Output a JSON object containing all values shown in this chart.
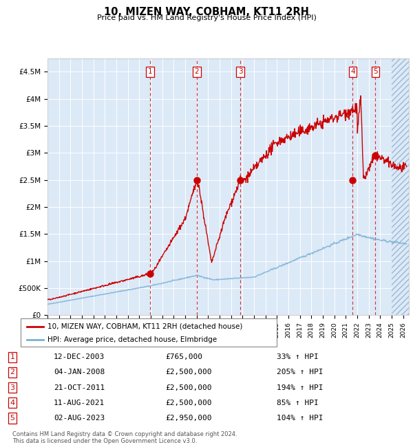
{
  "title": "10, MIZEN WAY, COBHAM, KT11 2RH",
  "subtitle": "Price paid vs. HM Land Registry's House Price Index (HPI)",
  "ylim": [
    0,
    4750000
  ],
  "xlim_start": 1995,
  "xlim_end": 2026.5,
  "plot_bg_color": "#dce9f7",
  "sale_points": [
    {
      "date": 2003.95,
      "price": 765000,
      "label": "1"
    },
    {
      "date": 2008.02,
      "price": 2500000,
      "label": "2"
    },
    {
      "date": 2011.81,
      "price": 2500000,
      "label": "3"
    },
    {
      "date": 2021.61,
      "price": 2500000,
      "label": "4"
    },
    {
      "date": 2023.59,
      "price": 2950000,
      "label": "5"
    }
  ],
  "vline_dates": [
    2003.95,
    2008.02,
    2011.81,
    2021.61,
    2023.59
  ],
  "legend_entries": [
    {
      "label": "10, MIZEN WAY, COBHAM, KT11 2RH (detached house)",
      "color": "#cc0000"
    },
    {
      "label": "HPI: Average price, detached house, Elmbridge",
      "color": "#7ab0d4"
    }
  ],
  "table_rows": [
    {
      "num": "1",
      "date": "12-DEC-2003",
      "price": "£765,000",
      "pct": "33% ↑ HPI"
    },
    {
      "num": "2",
      "date": "04-JAN-2008",
      "price": "£2,500,000",
      "pct": "205% ↑ HPI"
    },
    {
      "num": "3",
      "date": "21-OCT-2011",
      "price": "£2,500,000",
      "pct": "194% ↑ HPI"
    },
    {
      "num": "4",
      "date": "11-AUG-2021",
      "price": "£2,500,000",
      "pct": "85% ↑ HPI"
    },
    {
      "num": "5",
      "date": "02-AUG-2023",
      "price": "£2,950,000",
      "pct": "104% ↑ HPI"
    }
  ],
  "footnote": "Contains HM Land Registry data © Crown copyright and database right 2024.\nThis data is licensed under the Open Government Licence v3.0.",
  "red_line_color": "#cc0000",
  "blue_line_color": "#7ab0d4",
  "ytick_labels": [
    "£0",
    "£500K",
    "£1M",
    "£1.5M",
    "£2M",
    "£2.5M",
    "£3M",
    "£3.5M",
    "£4M",
    "£4.5M"
  ],
  "ytick_values": [
    0,
    500000,
    1000000,
    1500000,
    2000000,
    2500000,
    3000000,
    3500000,
    4000000,
    4500000
  ],
  "hatch_start": 2025.0
}
